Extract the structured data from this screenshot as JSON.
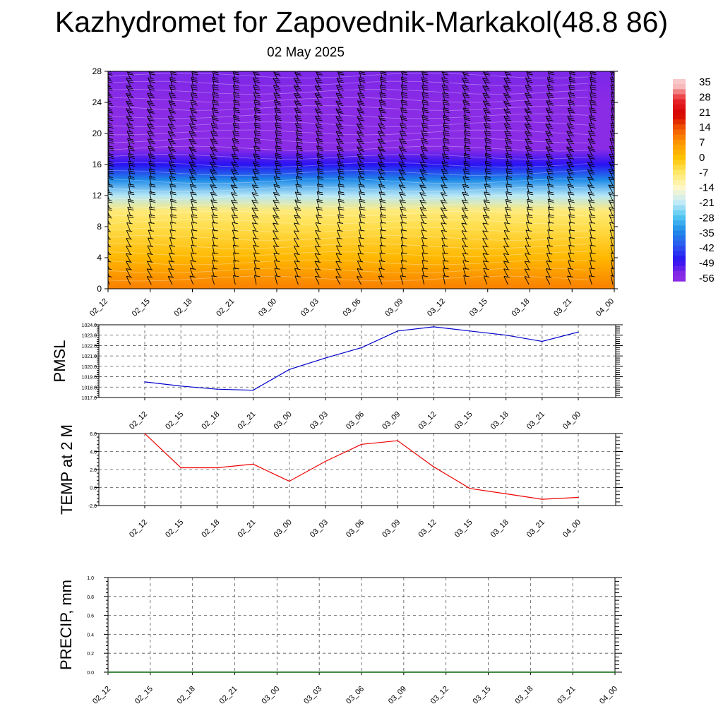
{
  "header": {
    "title": "Kazhydromet for Zapovednik-Markakol(48.8 86)",
    "date": "02 May 2025"
  },
  "colors": {
    "pmsl_line": "#0000cc",
    "temp_line": "#ee0000",
    "precip_line": "#006400",
    "barb": "#000000",
    "grid": "#555555"
  },
  "chart_data": [
    {
      "type": "heatmap",
      "name_hint": "temperature-height cross section with wind barbs",
      "x_ticks": [
        "02_12",
        "02_15",
        "02_18",
        "02_21",
        "03_00",
        "03_03",
        "03_06",
        "03_09",
        "03_12",
        "03_15",
        "03_18",
        "03_21",
        "04_00"
      ],
      "y_ticks": [
        0,
        4,
        8,
        12,
        16,
        20,
        24,
        28
      ],
      "ylim": [
        0,
        28
      ],
      "colorbar_labels": [
        "35",
        "28",
        "21",
        "14",
        "7",
        "0",
        "-7",
        "-14",
        "-21",
        "-28",
        "-35",
        "-42",
        "-49",
        "-56"
      ],
      "colorbar_stops": [
        "#f9c8c8",
        "#e8262b",
        "#d40000",
        "#f25a00",
        "#ff9a00",
        "#ffc400",
        "#ffe86a",
        "#fff7c7",
        "#c7ecf7",
        "#52c8f2",
        "#1f8be8",
        "#2b57f0",
        "#2a12f2",
        "#8a2be6"
      ],
      "field": {
        "note": "approximate temperature (deg C) by height level; roughly constant in time",
        "levels_km": [
          0,
          4,
          8,
          10,
          12,
          14,
          16,
          18,
          20,
          24,
          28
        ],
        "temperature": [
          10,
          2,
          -5,
          -8,
          -22,
          -35,
          -49,
          -56,
          -58,
          -56,
          -55
        ]
      }
    },
    {
      "type": "line",
      "ylabel": "PMSL",
      "x": [
        "02_12",
        "02_15",
        "02_18",
        "02_21",
        "03_00",
        "03_03",
        "03_06",
        "03_09",
        "03_12",
        "03_15",
        "03_18",
        "03_21",
        "04_00"
      ],
      "series": [
        {
          "values": [
            1018.5,
            1018.1,
            1017.8,
            1017.7,
            1019.7,
            1020.8,
            1021.8,
            1023.4,
            1023.8,
            1023.4,
            1023.0,
            1022.4,
            1023.3
          ]
        }
      ],
      "y_ticks": [
        "1017.0",
        "1018.0",
        "1019.0",
        "1020.0",
        "1021.0",
        "1022.0",
        "1023.0",
        "1024.0"
      ],
      "ylim": [
        1017.0,
        1024.0
      ]
    },
    {
      "type": "line",
      "ylabel": "TEMP at 2 M",
      "x": [
        "02_12",
        "02_15",
        "02_18",
        "02_21",
        "03_00",
        "03_03",
        "03_06",
        "03_09",
        "03_12",
        "03_15",
        "03_18",
        "03_21",
        "04_00"
      ],
      "series": [
        {
          "values": [
            6.0,
            2.2,
            2.2,
            2.6,
            0.7,
            2.9,
            4.8,
            5.2,
            2.3,
            -0.1,
            -0.7,
            -1.3,
            -1.1
          ]
        }
      ],
      "y_ticks": [
        "-2.0",
        "0.0",
        "2.0",
        "4.0",
        "6.0"
      ],
      "ylim": [
        -2.0,
        6.0
      ]
    },
    {
      "type": "line",
      "ylabel": "PRECIP, mm",
      "x": [
        "02_12",
        "02_15",
        "02_18",
        "02_21",
        "03_00",
        "03_03",
        "03_06",
        "03_09",
        "03_12",
        "03_15",
        "03_18",
        "03_21",
        "04_00"
      ],
      "series": [
        {
          "values": [
            0,
            0,
            0,
            0,
            0,
            0,
            0,
            0,
            0,
            0,
            0,
            0,
            0
          ]
        }
      ],
      "y_ticks": [
        "0.0",
        "0.2",
        "0.4",
        "0.6",
        "0.8",
        "1.0"
      ],
      "ylim": [
        0.0,
        1.0
      ]
    }
  ]
}
